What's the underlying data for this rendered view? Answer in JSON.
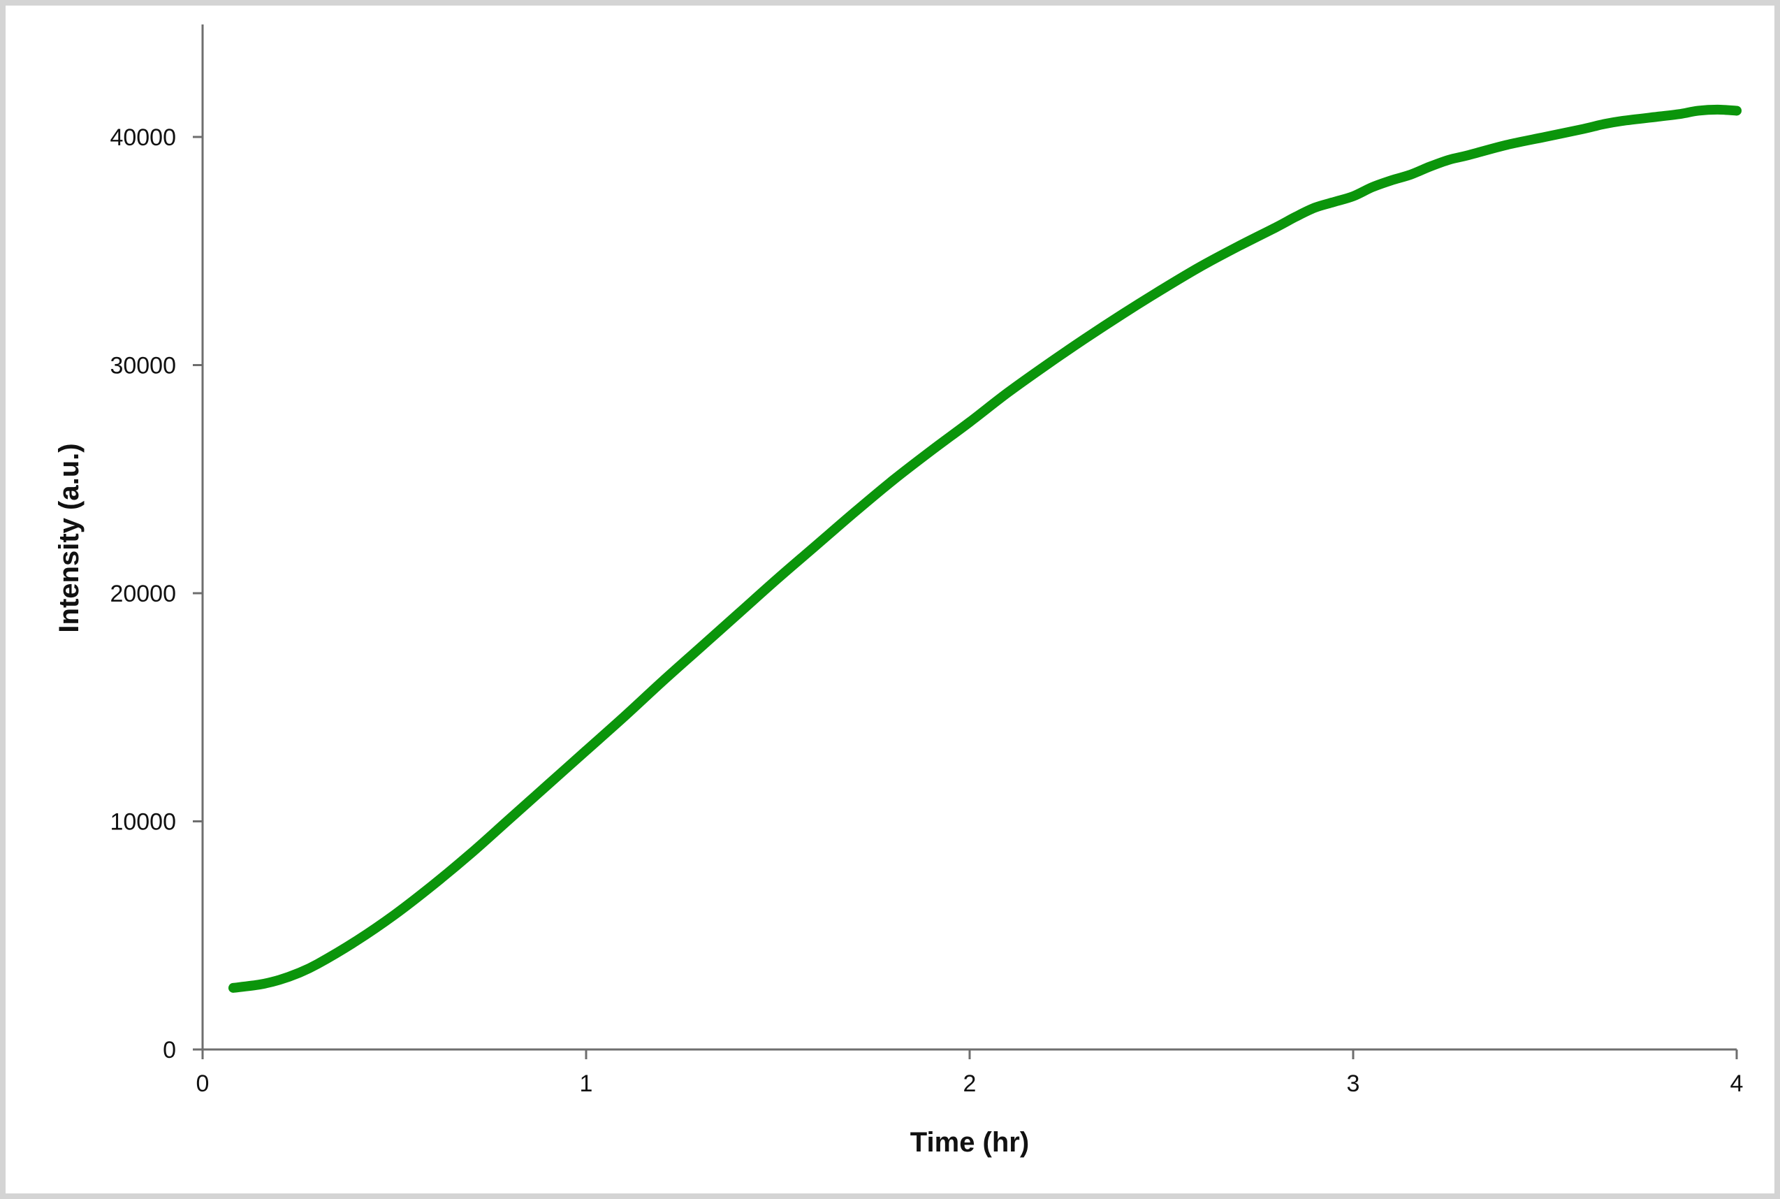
{
  "chart_data": {
    "type": "line",
    "title": "",
    "xlabel": "Time (hr)",
    "ylabel": "Intensity (a.u.)",
    "xlim": [
      0,
      4
    ],
    "ylim": [
      0,
      45000
    ],
    "x_ticks": [
      "0",
      "1",
      "2",
      "3",
      "4"
    ],
    "y_ticks": [
      "0",
      "10000",
      "20000",
      "30000",
      "40000"
    ],
    "grid": false,
    "legend": "none",
    "series": [
      {
        "color": "#0b950b",
        "x": [
          0.08,
          0.15,
          0.2,
          0.25,
          0.3,
          0.4,
          0.5,
          0.6,
          0.7,
          0.8,
          0.9,
          1.0,
          1.1,
          1.2,
          1.3,
          1.4,
          1.5,
          1.6,
          1.7,
          1.8,
          1.9,
          2.0,
          2.1,
          2.2,
          2.3,
          2.4,
          2.5,
          2.6,
          2.7,
          2.8,
          2.85,
          2.9,
          2.95,
          3.0,
          3.05,
          3.1,
          3.15,
          3.2,
          3.25,
          3.3,
          3.4,
          3.5,
          3.6,
          3.65,
          3.7,
          3.8,
          3.85,
          3.9,
          3.95,
          4.0
        ],
        "y": [
          2700,
          2850,
          3050,
          3350,
          3750,
          4750,
          5900,
          7200,
          8600,
          10100,
          11600,
          13100,
          14600,
          16150,
          17650,
          19150,
          20650,
          22100,
          23550,
          24950,
          26250,
          27500,
          28800,
          30000,
          31150,
          32250,
          33300,
          34300,
          35200,
          36050,
          36500,
          36900,
          37150,
          37400,
          37800,
          38100,
          38350,
          38700,
          39000,
          39200,
          39650,
          40000,
          40350,
          40550,
          40700,
          40900,
          41000,
          41150,
          41200,
          41150
        ]
      }
    ]
  }
}
